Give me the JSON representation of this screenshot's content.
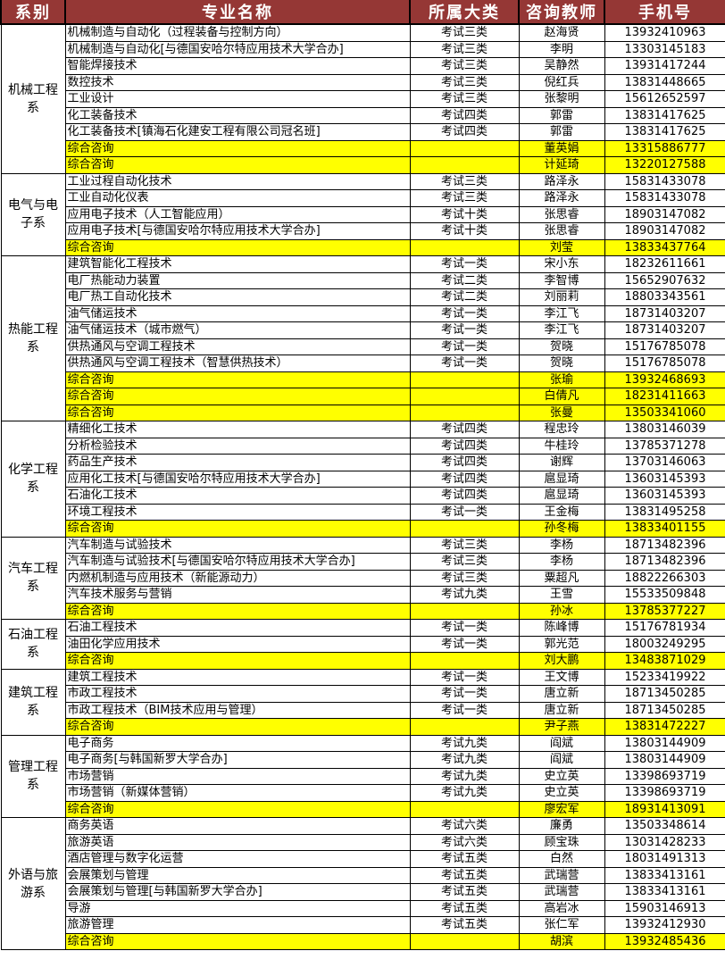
{
  "headers": [
    "系别",
    "专业名称",
    "所属大类",
    "咨询教师",
    "手机号"
  ],
  "highlight_color": "#ffff00",
  "header_color": "#953735",
  "departments": [
    {
      "name": "机械工程系",
      "rows": [
        [
          "机械制造与自动化（过程装备与控制方向）",
          "考试三类",
          "赵海贤",
          "13932410963"
        ],
        [
          "机械制造与自动化[与德国安哈尔特应用技术大学合办]",
          "考试三类",
          "李明",
          "13303145183"
        ],
        [
          "智能焊接技术",
          "考试三类",
          "吴静然",
          "13931417244"
        ],
        [
          "数控技术",
          "考试三类",
          "倪红兵",
          "13831448665"
        ],
        [
          "工业设计",
          "考试三类",
          "张黎明",
          "15612652597"
        ],
        [
          "化工装备技术",
          "考试四类",
          "郭雷",
          "13831417625"
        ],
        [
          "化工装备技术[镇海石化建安工程有限公司冠名班]",
          "考试四类",
          "郭雷",
          "13831417625"
        ],
        [
          "综合咨询",
          "",
          "董英娟",
          "13315886777"
        ],
        [
          "综合咨询",
          "",
          "计延琦",
          "13220127588"
        ]
      ]
    },
    {
      "name": "电气与电子系",
      "rows": [
        [
          "工业过程自动化技术",
          "考试三类",
          "路泽永",
          "15831433078"
        ],
        [
          "工业自动化仪表",
          "考试三类",
          "路泽永",
          "15831433078"
        ],
        [
          "应用电子技术（人工智能应用）",
          "考试十类",
          "张思睿",
          "18903147082"
        ],
        [
          "应用电子技术[与德国安哈尔特应用技术大学合办]",
          "考试十类",
          "张思睿",
          "18903147082"
        ],
        [
          "综合咨询",
          "",
          "刘莹",
          "13833437764"
        ]
      ]
    },
    {
      "name": "热能工程系",
      "rows": [
        [
          "建筑智能化工程技术",
          "考试一类",
          "宋小东",
          "18232611661"
        ],
        [
          "电厂热能动力装置",
          "考试二类",
          "李智博",
          "15652907632"
        ],
        [
          "电厂热工自动化技术",
          "考试二类",
          "刘丽莉",
          "18803343561"
        ],
        [
          "油气储运技术",
          "考试一类",
          "李江飞",
          "18731403207"
        ],
        [
          "油气储运技术（城市燃气）",
          "考试一类",
          "李江飞",
          "18731403207"
        ],
        [
          "供热通风与空调工程技术",
          "考试一类",
          "贺晓",
          "15176785078"
        ],
        [
          "供热通风与空调工程技术（智慧供热技术）",
          "考试一类",
          "贺晓",
          "15176785078"
        ],
        [
          "综合咨询",
          "",
          "张瑜",
          "13932468693"
        ],
        [
          "综合咨询",
          "",
          "白倩凡",
          "18231411663"
        ],
        [
          "综合咨询",
          "",
          "张曼",
          "13503341060"
        ]
      ]
    },
    {
      "name": "化学工程系",
      "rows": [
        [
          "精细化工技术",
          "考试四类",
          "程忠玲",
          "13803146039"
        ],
        [
          "分析检验技术",
          "考试四类",
          "牛桂玲",
          "13785371278"
        ],
        [
          "药品生产技术",
          "考试四类",
          "谢辉",
          "13703146063"
        ],
        [
          "应用化工技术[与德国安哈尔特应用技术大学合办]",
          "考试四类",
          "扈显琦",
          "13603145393"
        ],
        [
          "石油化工技术",
          "考试四类",
          "扈显琦",
          "13603145393"
        ],
        [
          "环境工程技术",
          "考试一类",
          "王金梅",
          "13831495258"
        ],
        [
          "综合咨询",
          "",
          "孙冬梅",
          "13833401155"
        ]
      ]
    },
    {
      "name": "汽车工程系",
      "rows": [
        [
          "汽车制造与试验技术",
          "考试三类",
          "李杨",
          "18713482396"
        ],
        [
          "汽车制造与试验技术[与德国安哈尔特应用技术大学合办]",
          "考试三类",
          "李杨",
          "18713482396"
        ],
        [
          "内燃机制造与应用技术（新能源动力）",
          "考试三类",
          "粟超凡",
          "18822266303"
        ],
        [
          "汽车技术服务与营销",
          "考试九类",
          "王雪",
          "15533509848"
        ],
        [
          "综合咨询",
          "",
          "孙冰",
          "13785377227"
        ]
      ]
    },
    {
      "name": "石油工程系",
      "rows": [
        [
          "石油工程技术",
          "考试一类",
          "陈峰博",
          "15176781934"
        ],
        [
          "油田化学应用技术",
          "考试一类",
          "郭光范",
          "18003249295"
        ],
        [
          "综合咨询",
          "",
          "刘大鹏",
          "13483871029"
        ]
      ]
    },
    {
      "name": "建筑工程系",
      "rows": [
        [
          "建筑工程技术",
          "考试一类",
          "王文博",
          "15233419922"
        ],
        [
          "市政工程技术",
          "考试一类",
          "唐立新",
          "18713450285"
        ],
        [
          "市政工程技术（BIM技术应用与管理）",
          "考试一类",
          "唐立新",
          "18713450285"
        ],
        [
          "综合咨询",
          "",
          "尹子燕",
          "13831472227"
        ]
      ]
    },
    {
      "name": "管理工程系",
      "rows": [
        [
          "电子商务",
          "考试九类",
          "阎斌",
          "13803144909"
        ],
        [
          "电子商务[与韩国新罗大学合办]",
          "考试九类",
          "阎斌",
          "13803144909"
        ],
        [
          "市场营销",
          "考试九类",
          "史立英",
          "13398693719"
        ],
        [
          "市场营销（新媒体营销）",
          "考试九类",
          "史立英",
          "13398693719"
        ],
        [
          "综合咨询",
          "",
          "廖宏军",
          "18931413091"
        ]
      ]
    },
    {
      "name": "外语与旅游系",
      "rows": [
        [
          "商务英语",
          "考试六类",
          "廉勇",
          "13503348614"
        ],
        [
          "旅游英语",
          "考试六类",
          "顾宝珠",
          "13031428233"
        ],
        [
          "酒店管理与数字化运营",
          "考试五类",
          "白然",
          "18031491313"
        ],
        [
          "会展策划与管理",
          "考试五类",
          "武瑞营",
          "13833413161"
        ],
        [
          "会展策划与管理[与韩国新罗大学合办]",
          "考试五类",
          "武瑞营",
          "13833413161"
        ],
        [
          "导游",
          "考试五类",
          "高岩冰",
          "15903146913"
        ],
        [
          "旅游管理",
          "考试五类",
          "张仁军",
          "13932412930"
        ],
        [
          "综合咨询",
          "",
          "胡滨",
          "13932485436"
        ]
      ]
    }
  ]
}
